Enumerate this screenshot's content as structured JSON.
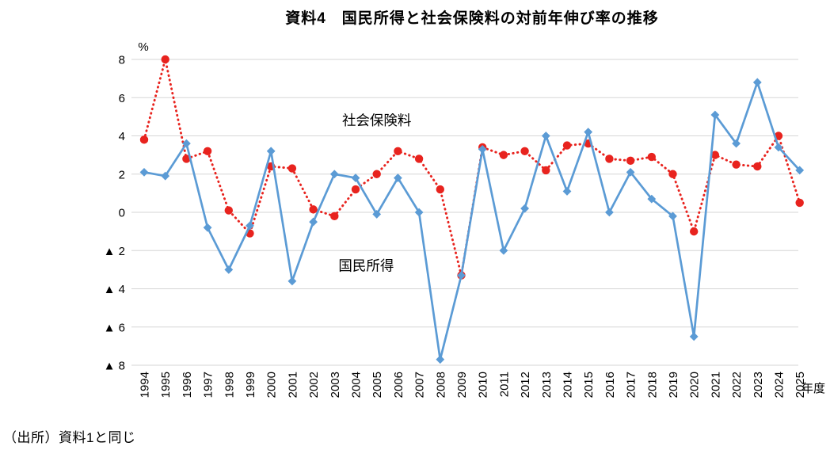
{
  "title": "資料4　国民所得と社会保険料の対前年伸び率の推移",
  "source_note": "（出所）資料1と同じ",
  "chart_data": {
    "type": "line",
    "x": [
      1994,
      1995,
      1996,
      1997,
      1998,
      1999,
      2000,
      2001,
      2002,
      2003,
      2004,
      2005,
      2006,
      2007,
      2008,
      2009,
      2010,
      2011,
      2012,
      2013,
      2014,
      2015,
      2016,
      2017,
      2018,
      2019,
      2020,
      2021,
      2022,
      2023,
      2024,
      2025
    ],
    "xlabel": "年度",
    "y_unit": "%",
    "ylim": [
      -8,
      8
    ],
    "y_ticks": [
      8,
      6,
      4,
      2,
      0,
      -2,
      -4,
      -6,
      -8
    ],
    "negative_prefix": "▲ ",
    "grid": true,
    "legend_position": "inline-labels",
    "series": [
      {
        "name": "社会保険料",
        "color": "#e8231e",
        "style": "dotted",
        "marker": "circle",
        "values": [
          3.8,
          8.0,
          2.8,
          3.2,
          0.1,
          -1.1,
          2.4,
          2.3,
          0.15,
          -0.2,
          1.2,
          2.0,
          3.2,
          2.8,
          1.2,
          -3.3,
          3.4,
          3.0,
          3.2,
          2.2,
          3.5,
          3.6,
          2.8,
          2.7,
          2.9,
          2.0,
          -1.0,
          3.0,
          2.5,
          2.4,
          4.0,
          0.5
        ]
      },
      {
        "name": "国民所得",
        "color": "#5b9bd5",
        "style": "solid",
        "marker": "diamond",
        "values": [
          2.1,
          1.9,
          3.6,
          -0.8,
          -3.0,
          -0.7,
          3.2,
          -3.6,
          -0.5,
          2.0,
          1.8,
          -0.1,
          1.8,
          0.0,
          -7.7,
          -3.3,
          3.3,
          -2.0,
          0.2,
          4.0,
          1.1,
          4.2,
          0.0,
          2.1,
          0.7,
          -0.2,
          -6.5,
          5.1,
          3.6,
          6.8,
          3.4,
          2.2
        ]
      }
    ],
    "series_labels": [
      {
        "text": "社会保険料",
        "year": 2005.0,
        "value": 4.55
      },
      {
        "text": "国民所得",
        "year": 2004.5,
        "value": -3.05
      }
    ]
  }
}
